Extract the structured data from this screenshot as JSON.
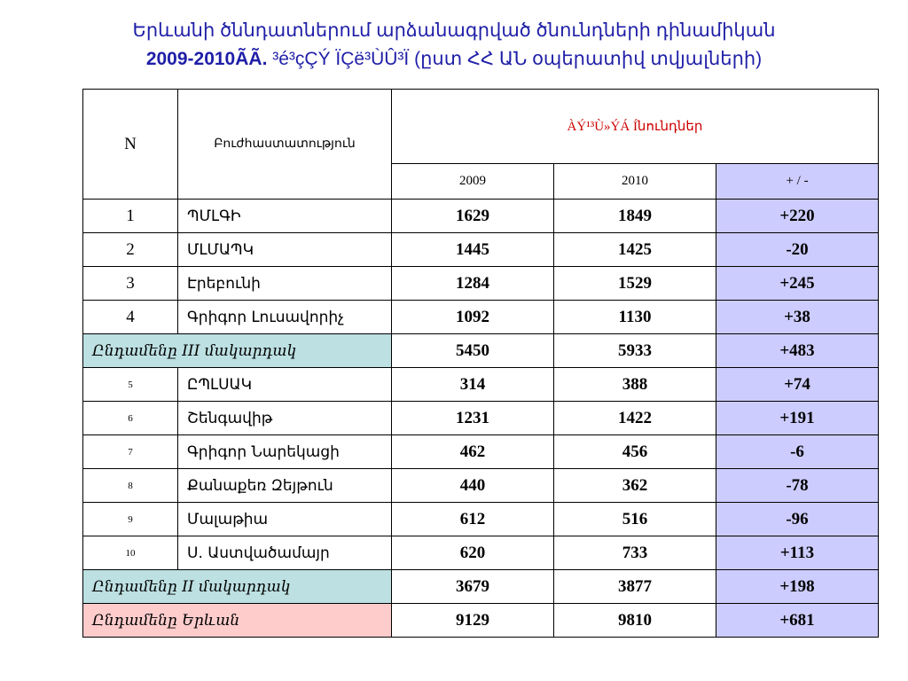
{
  "title": {
    "line1": "Երևանի ծննդատներում արձանագրված ծնունդների դինամիկան",
    "line2_year": "2009-2010ÃÃ.",
    "line2_rest": " ³é³çÇÝ ÏÇë³ÙÛ³Ï (ըստ ՀՀ  ԱՆ օպերատիվ տվյալների)"
  },
  "table": {
    "headers": {
      "n": "N",
      "org": "Բուժհաստատություն",
      "group": "ÀÝ¹³Ù»ÝÁ  Íնունդներ",
      "y2009": "2009",
      "y2010": "2010",
      "diff": "+ / -"
    },
    "rows": [
      {
        "n": "1",
        "name": "ՊՄԼԳԻ",
        "v2009": "1629",
        "v2010": "1849",
        "diff": "+220"
      },
      {
        "n": "2",
        "name": "ՄԼՄԱՊԿ",
        "v2009": "1445",
        "v2010": "1425",
        "diff": "-20"
      },
      {
        "n": "3",
        "name": "Էրեբունի",
        "v2009": "1284",
        "v2010": "1529",
        "diff": "+245"
      },
      {
        "n": "4",
        "name": "Գրիգոր Լուսավորիչ",
        "v2009": "1092",
        "v2010": "1130",
        "diff": "+38"
      }
    ],
    "subtotal3": {
      "label": "Ընդամենը III մակարդակ",
      "v2009": "5450",
      "v2010": "5933",
      "diff": "+483"
    },
    "rows2": [
      {
        "n": "5",
        "name": "ԸՊԼՍԱԿ",
        "v2009": "314",
        "v2010": "388",
        "diff": "+74"
      },
      {
        "n": "6",
        "name": "Շենգավիթ",
        "v2009": "1231",
        "v2010": "1422",
        "diff": "+191"
      },
      {
        "n": "7",
        "name": "Գրիգոր Նարեկացի",
        "v2009": "462",
        "v2010": "456",
        "diff": "-6"
      },
      {
        "n": "8",
        "name": "Քանաքեռ Զեյթուն",
        "v2009": "440",
        "v2010": "362",
        "diff": "-78"
      },
      {
        "n": "9",
        "name": "Մալաթիա",
        "v2009": "612",
        "v2010": "516",
        "diff": "-96"
      },
      {
        "n": "10",
        "name": "Ս. Աստվածամայր",
        "v2009": "620",
        "v2010": "733",
        "diff": "+113"
      }
    ],
    "subtotal2": {
      "label": "Ընդամենը  II մակարդակ",
      "v2009": "3679",
      "v2010": "3877",
      "diff": "+198"
    },
    "total": {
      "label": "Ընդամենը  Երևան",
      "v2009": "9129",
      "v2010": "9810",
      "diff": "+681"
    }
  }
}
